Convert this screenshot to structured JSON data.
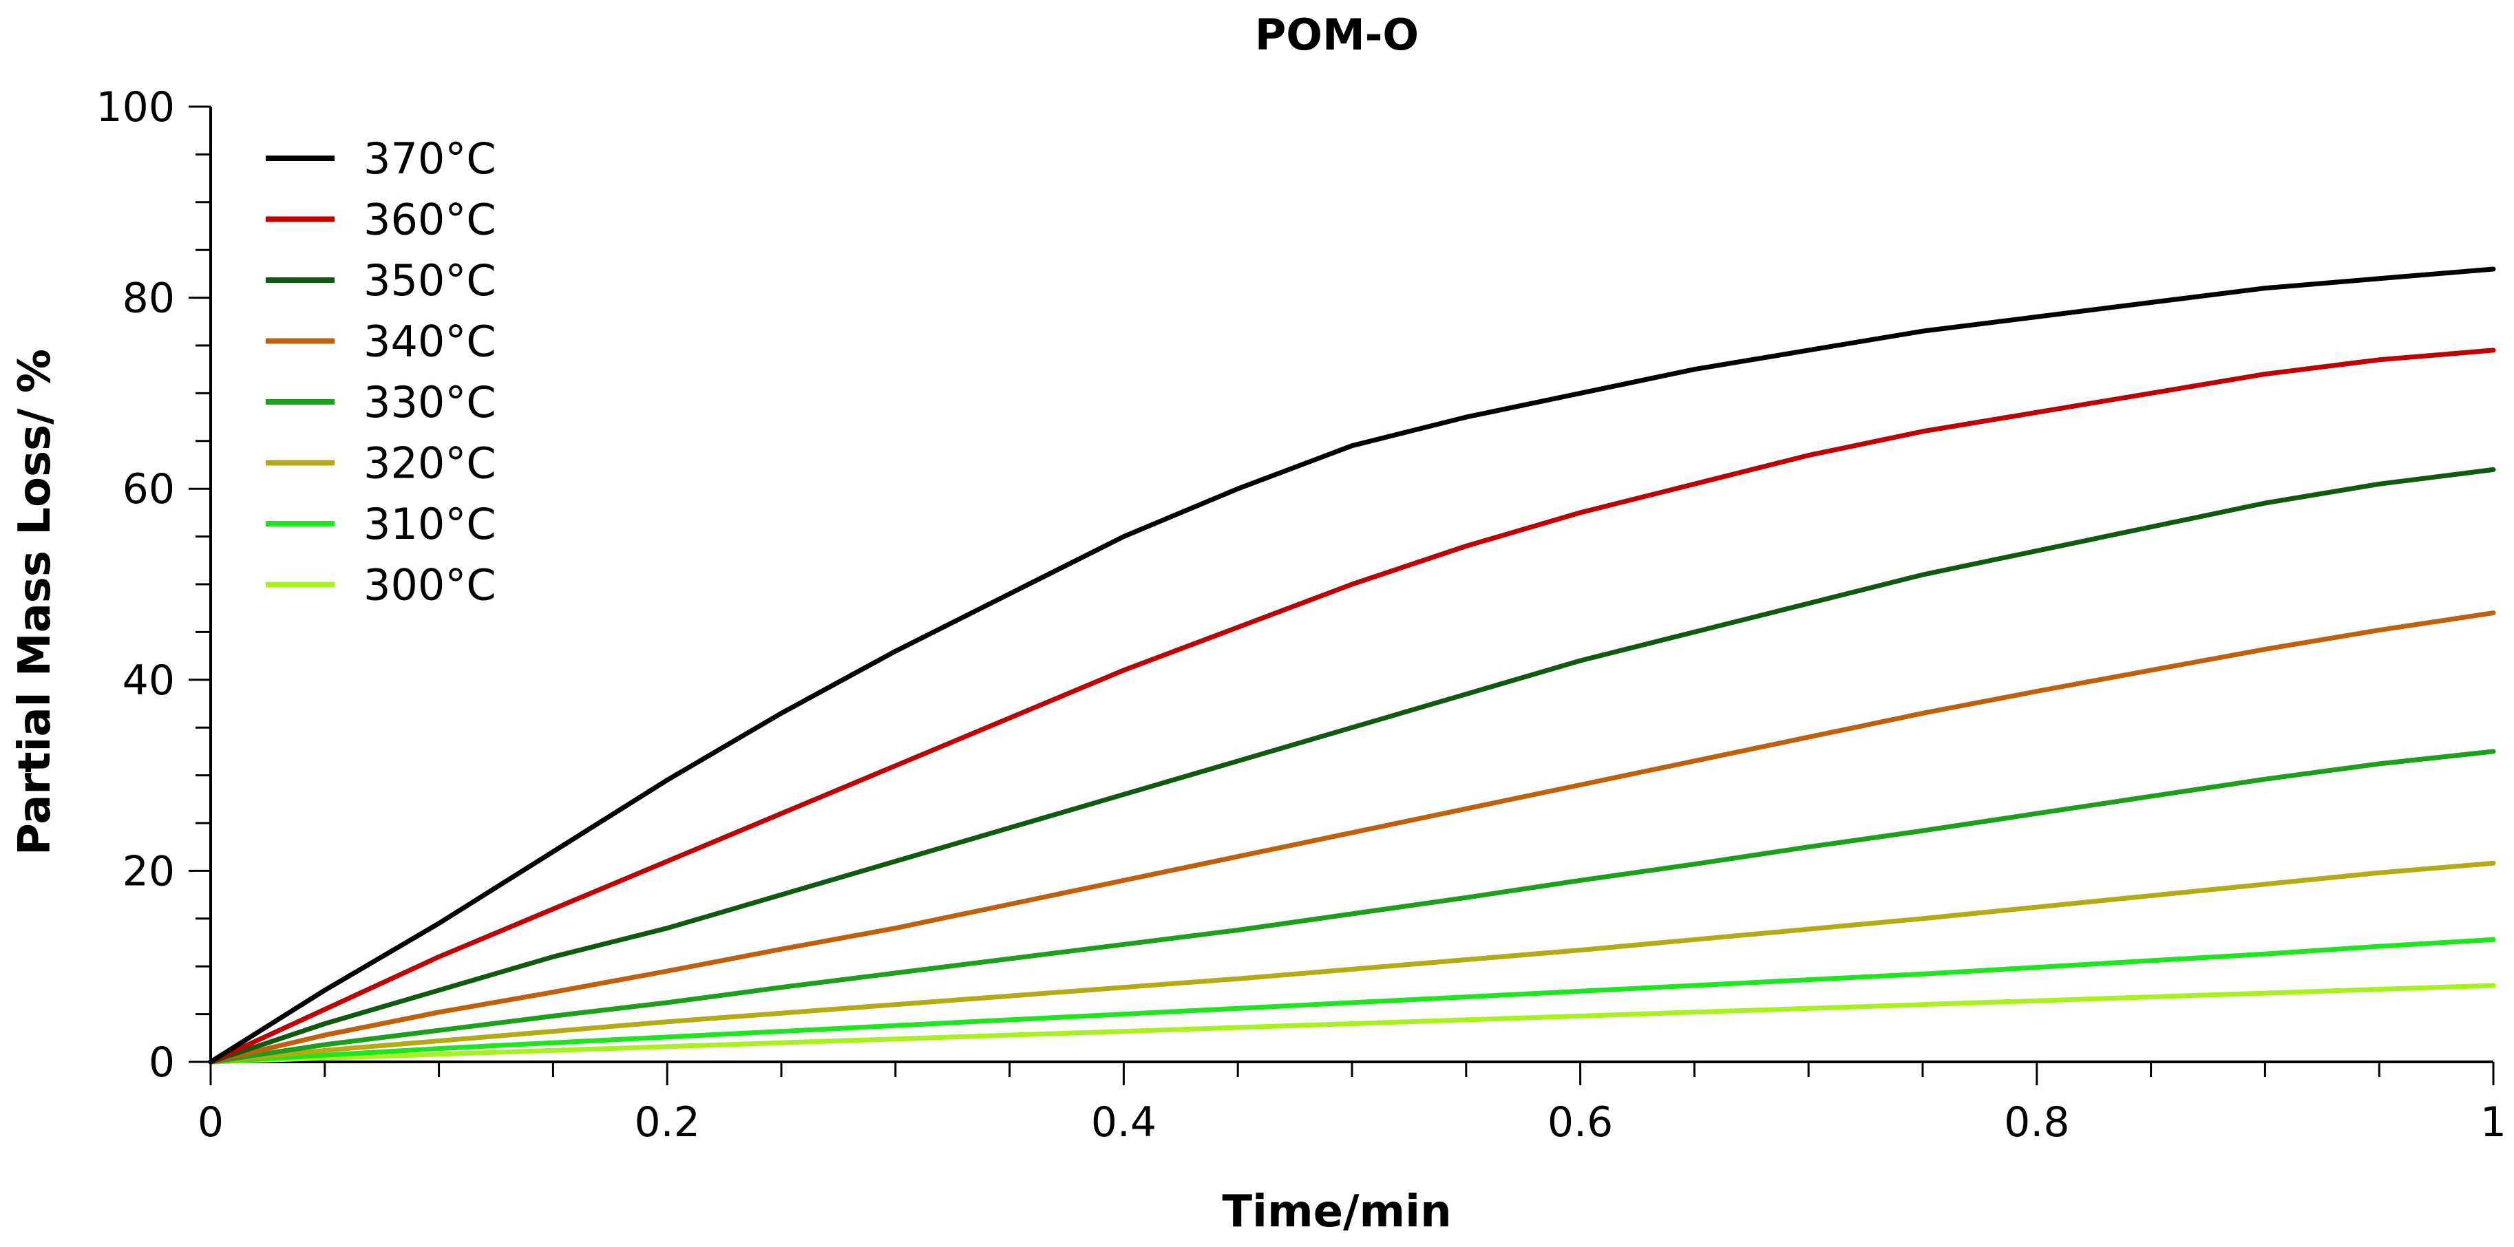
{
  "chart_data": {
    "type": "line",
    "title": "POM-O",
    "xlabel": "Time/min",
    "ylabel": "Partial Mass Loss/ %",
    "xlim": [
      0,
      1
    ],
    "ylim": [
      0,
      100
    ],
    "xticks": [
      "0",
      "0.2",
      "0.4",
      "0.6",
      "0.8",
      "1"
    ],
    "yticks": [
      "0",
      "20",
      "40",
      "60",
      "80",
      "100"
    ],
    "grid": false,
    "legend_position": "top-left",
    "x": [
      0,
      0.05,
      0.1,
      0.15,
      0.2,
      0.25,
      0.3,
      0.35,
      0.4,
      0.45,
      0.5,
      0.55,
      0.6,
      0.65,
      0.7,
      0.75,
      0.8,
      0.85,
      0.9,
      0.95,
      1.0
    ],
    "series": [
      {
        "name": "370°C",
        "color": "#000000",
        "values": [
          0,
          7.5,
          14.5,
          22,
          29.5,
          36.5,
          43,
          49,
          55,
          60,
          64.5,
          67.5,
          70,
          72.5,
          74.5,
          76.5,
          78,
          79.5,
          81,
          82,
          83
        ]
      },
      {
        "name": "360°C",
        "color": "#c00000",
        "values": [
          0,
          5.5,
          11,
          16,
          21,
          26,
          31,
          36,
          41,
          45.5,
          50,
          54,
          57.5,
          60.5,
          63.5,
          66,
          68,
          70,
          72,
          73.5,
          74.5
        ]
      },
      {
        "name": "350°C",
        "color": "#0e5a0e",
        "values": [
          0,
          4,
          7.5,
          11,
          14,
          17.5,
          21,
          24.5,
          28,
          31.5,
          35,
          38.5,
          42,
          45,
          48,
          51,
          53.5,
          56,
          58.5,
          60.5,
          62
        ]
      },
      {
        "name": "340°C",
        "color": "#c0600a",
        "values": [
          0,
          2.8,
          5.2,
          7.3,
          9.5,
          11.8,
          14,
          16.5,
          19,
          21.5,
          24,
          26.5,
          29,
          31.5,
          34,
          36.5,
          38.8,
          41,
          43.2,
          45.2,
          47
        ]
      },
      {
        "name": "330°C",
        "color": "#1aa01a",
        "values": [
          0,
          1.8,
          3.3,
          4.8,
          6.2,
          7.8,
          9.3,
          10.8,
          12.3,
          13.8,
          15.5,
          17.2,
          19,
          20.7,
          22.5,
          24.2,
          26,
          27.8,
          29.6,
          31.2,
          32.5
        ]
      },
      {
        "name": "320°C",
        "color": "#b4aa14",
        "values": [
          0,
          1.2,
          2.2,
          3.2,
          4.2,
          5.1,
          6,
          6.9,
          7.8,
          8.7,
          9.7,
          10.7,
          11.7,
          12.8,
          13.9,
          15,
          16.2,
          17.4,
          18.6,
          19.8,
          20.8
        ]
      },
      {
        "name": "310°C",
        "color": "#1ee61e",
        "values": [
          0,
          0.7,
          1.4,
          2,
          2.6,
          3.2,
          3.8,
          4.4,
          5,
          5.6,
          6.2,
          6.8,
          7.4,
          8,
          8.6,
          9.2,
          9.9,
          10.6,
          11.3,
          12.1,
          12.8
        ]
      },
      {
        "name": "300°C",
        "color": "#a8f01e",
        "values": [
          0,
          0.4,
          0.8,
          1.2,
          1.6,
          2,
          2.4,
          2.8,
          3.2,
          3.6,
          4,
          4.4,
          4.8,
          5.2,
          5.6,
          6,
          6.4,
          6.8,
          7.2,
          7.6,
          8
        ]
      }
    ]
  }
}
